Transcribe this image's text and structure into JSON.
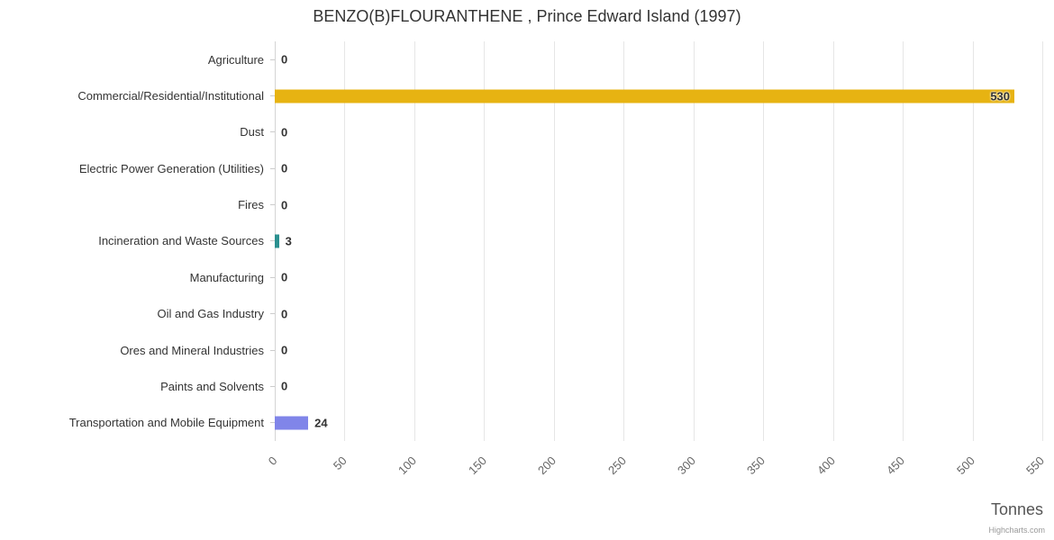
{
  "title": "BENZO(B)FLOURANTHENE , Prince Edward Island (1997)",
  "credit": "Highcharts.com",
  "chart_data": {
    "type": "bar",
    "title": "BENZO(B)FLOURANTHENE , Prince Edward Island (1997)",
    "orientation": "horizontal",
    "categories": [
      "Agriculture",
      "Commercial/Residential/Institutional",
      "Dust",
      "Electric Power Generation (Utilities)",
      "Fires",
      "Incineration and Waste Sources",
      "Manufacturing",
      "Oil and Gas Industry",
      "Ores and Mineral Industries",
      "Paints and Solvents",
      "Transportation and Mobile Equipment"
    ],
    "values": [
      0,
      530,
      0,
      0,
      0,
      3,
      0,
      0,
      0,
      0,
      24
    ],
    "colors": [
      null,
      "#e7b312",
      null,
      null,
      null,
      "#2b908f",
      null,
      null,
      null,
      null,
      "#8085e9"
    ],
    "xlabel": "Tonnes",
    "ylabel": "",
    "xlim": [
      0,
      550
    ],
    "ticks": [
      0,
      50,
      100,
      150,
      200,
      250,
      300,
      350,
      400,
      450,
      500,
      550
    ],
    "grid": true,
    "legend": "none",
    "data_labels": true
  }
}
